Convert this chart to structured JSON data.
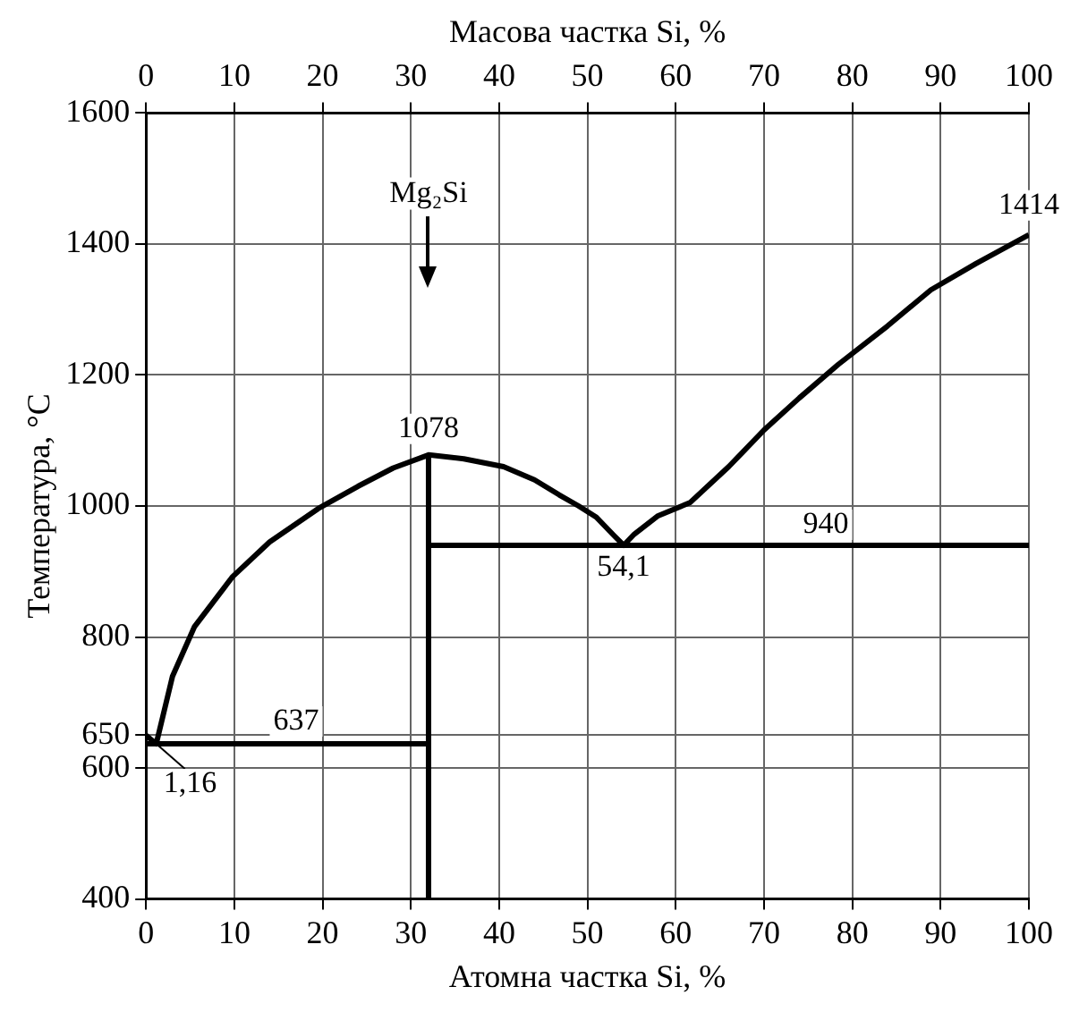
{
  "chart_data": {
    "type": "line",
    "xlabel": "Атомна частка Si, %",
    "x2label": "Масова частка Si, %",
    "ylabel": "Температура, °C",
    "xlim": [
      0,
      100
    ],
    "xticks": [
      0,
      10,
      20,
      30,
      40,
      50,
      60,
      70,
      80,
      90,
      100
    ],
    "x2lim": [
      0,
      100
    ],
    "x2ticks": [
      0,
      10,
      20,
      30,
      40,
      50,
      60,
      70,
      80,
      90,
      100
    ],
    "ylim": [
      400,
      1600
    ],
    "yticks": [
      400,
      600,
      650,
      800,
      1000,
      1200,
      1400,
      1600
    ],
    "grid": true,
    "marker": "none",
    "line_style": "solid",
    "series": [
      {
        "color": "#000000",
        "x": [
          0,
          1.16,
          3,
          5.5,
          9.8,
          14,
          19.5,
          24,
          28,
          32,
          36,
          40.5,
          44,
          46.8,
          49,
          51,
          53,
          54.1,
          55.3,
          58,
          61.6,
          66,
          70,
          74,
          78.4,
          84,
          88.9,
          94,
          100
        ],
        "values": [
          650,
          637,
          740,
          816,
          892,
          945,
          996,
          1030,
          1058,
          1078,
          1072,
          1060,
          1040,
          1017,
          1000,
          983,
          955,
          940,
          957,
          985,
          1005,
          1060,
          1116,
          1165,
          1216,
          1275,
          1330,
          1370,
          1414
        ]
      },
      {
        "color": "#000000",
        "x": [
          0,
          32
        ],
        "values": [
          637,
          637
        ]
      },
      {
        "color": "#000000",
        "x": [
          32,
          100
        ],
        "values": [
          940,
          940
        ]
      },
      {
        "color": "#000000",
        "x": [
          32,
          32
        ],
        "values": [
          400,
          1078
        ]
      }
    ],
    "annotations": [
      "Mg₂Si",
      {
        "text": "1078",
        "x": 32,
        "y": 1078
      },
      {
        "text": "1414",
        "x": 100,
        "y": 1414
      },
      {
        "text": "940",
        "x": 77,
        "y": 940
      },
      {
        "text": "54,1",
        "x": 54.1,
        "y": 940
      },
      {
        "text": "637",
        "x": 17,
        "y": 637
      },
      {
        "text": "1,16",
        "x": 1.16,
        "y": 637
      }
    ]
  }
}
